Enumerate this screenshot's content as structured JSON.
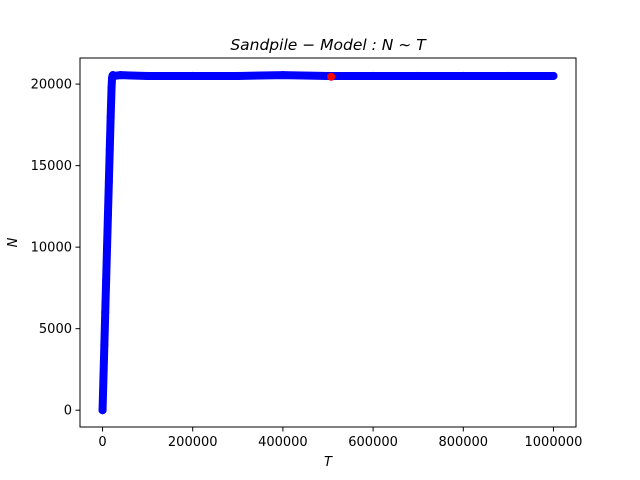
{
  "chart_data": {
    "type": "scatter",
    "title": "Sandpile − Model : N ∼ T",
    "xlabel": "T",
    "ylabel": "N",
    "xlim": [
      -50000,
      1050000
    ],
    "ylim": [
      -1030,
      21600
    ],
    "x_ticks": [
      0,
      200000,
      400000,
      600000,
      800000,
      1000000
    ],
    "x_tick_labels": [
      "0",
      "200000",
      "400000",
      "600000",
      "800000",
      "1000000"
    ],
    "y_ticks": [
      0,
      5000,
      10000,
      15000,
      20000
    ],
    "y_tick_labels": [
      "0",
      "5000",
      "10000",
      "15000",
      "20000"
    ],
    "grid": false,
    "legend": "none",
    "series": [
      {
        "color": "#0000ff",
        "marker": "circle",
        "x": [
          0,
          2000,
          4000,
          6000,
          8000,
          10000,
          12000,
          14000,
          16000,
          18000,
          20000,
          21000,
          22000,
          23000,
          24000,
          25000,
          40000,
          100000,
          200000,
          300000,
          400000,
          500000,
          600000,
          700000,
          800000,
          900000,
          1000000
        ],
        "y": [
          0,
          2000,
          4000,
          6000,
          8000,
          10000,
          12000,
          14000,
          16000,
          18000,
          19800,
          20350,
          20500,
          20550,
          20500,
          20500,
          20550,
          20500,
          20500,
          20500,
          20550,
          20500,
          20500,
          20500,
          20500,
          20500,
          20500
        ]
      },
      {
        "color": "#ff0000",
        "marker": "circle",
        "x": [
          507000
        ],
        "y": [
          20450
        ]
      }
    ]
  }
}
